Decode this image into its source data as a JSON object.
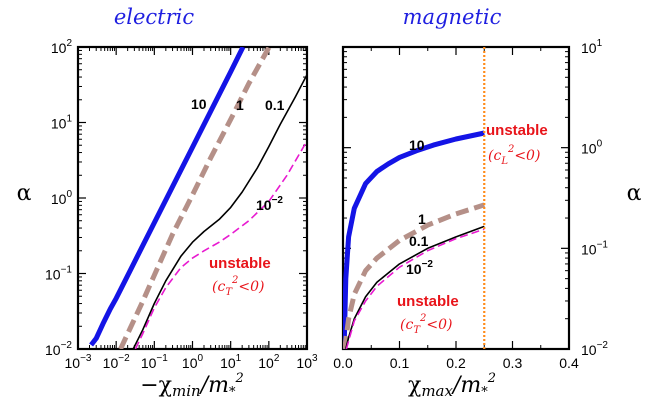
{
  "chart_data": [
    {
      "type": "line",
      "title": "electric",
      "xlabel": "−χmin/m*2",
      "ylabel": "α",
      "xscale": "log",
      "yscale": "log",
      "xlim": [
        0.001,
        1000
      ],
      "ylim": [
        0.01,
        100
      ],
      "x_ticks": [
        "10-3",
        "10-2",
        "10-1",
        "100",
        "101",
        "102",
        "103"
      ],
      "y_ticks": [
        "10-2",
        "10-1",
        "100",
        "101",
        "102"
      ],
      "series": [
        {
          "name": "10",
          "color": "#1414e6",
          "style": "solid thick",
          "points": [
            [
              0.0022,
              0.0113
            ],
            [
              0.003,
              0.0138
            ],
            [
              0.0045,
              0.0215
            ],
            [
              0.007,
              0.034
            ],
            [
              0.01,
              0.047
            ],
            [
              0.02,
              0.094
            ],
            [
              0.05,
              0.235
            ],
            [
              0.1,
              0.47
            ],
            [
              0.3,
              1.41
            ],
            [
              1,
              4.7
            ],
            [
              3,
              14.1
            ],
            [
              10,
              47
            ],
            [
              21,
              100
            ]
          ]
        },
        {
          "name": "1",
          "color": "#b59088",
          "style": "dashed thick",
          "points": [
            [
              0.013,
              0.01
            ],
            [
              0.02,
              0.016
            ],
            [
              0.05,
              0.043
            ],
            [
              0.1,
              0.095
            ],
            [
              0.3,
              0.33
            ],
            [
              1,
              1.1
            ],
            [
              3,
              3.4
            ],
            [
              10,
              11
            ],
            [
              30,
              33
            ],
            [
              100,
              98
            ],
            [
              110,
              110
            ]
          ]
        },
        {
          "name": "0.1",
          "color": "#000000",
          "style": "solid thin",
          "points": [
            [
              0.028,
              0.01
            ],
            [
              0.05,
              0.018
            ],
            [
              0.1,
              0.04
            ],
            [
              0.2,
              0.08
            ],
            [
              0.5,
              0.17
            ],
            [
              1,
              0.26
            ],
            [
              2,
              0.36
            ],
            [
              5,
              0.52
            ],
            [
              10,
              0.75
            ],
            [
              20,
              1.2
            ],
            [
              50,
              2.5
            ],
            [
              100,
              4.8
            ],
            [
              200,
              9.5
            ],
            [
              500,
              22
            ],
            [
              1000,
              43
            ]
          ]
        },
        {
          "name": "10-2",
          "color": "#e81ad0",
          "style": "dashed thin",
          "points": [
            [
              0.032,
              0.01
            ],
            [
              0.05,
              0.016
            ],
            [
              0.1,
              0.035
            ],
            [
              0.2,
              0.065
            ],
            [
              0.5,
              0.12
            ],
            [
              1,
              0.16
            ],
            [
              2,
              0.2
            ],
            [
              5,
              0.26
            ],
            [
              10,
              0.33
            ],
            [
              30,
              0.5
            ],
            [
              100,
              0.9
            ],
            [
              300,
              2
            ],
            [
              1000,
              5.7
            ]
          ]
        }
      ],
      "annotations": [
        {
          "text": "10"
        },
        {
          "text": "1"
        },
        {
          "text": "0.1"
        },
        {
          "text": "10",
          "sup": "−2"
        },
        {
          "text": "unstable"
        },
        {
          "text": "(c",
          "sub": "T",
          "sup": "2",
          "rest": "<0)"
        }
      ]
    },
    {
      "type": "line",
      "title": "magnetic",
      "xlabel": "χmax/m*2",
      "ylabel": "α",
      "xscale": "linear",
      "yscale": "log",
      "xlim": [
        0,
        0.4
      ],
      "ylim": [
        0.01,
        10
      ],
      "x_ticks": [
        "0.0",
        "0.1",
        "0.2",
        "0.3",
        "0.4"
      ],
      "y_ticks": [
        "10-2",
        "10-1",
        "100",
        "101"
      ],
      "vline": {
        "x": 0.25,
        "color": "#ff8c1a",
        "style": "dotted"
      },
      "series": [
        {
          "name": "10",
          "color": "#1414e6",
          "style": "solid thick",
          "points": [
            [
              0.002,
              0.01
            ],
            [
              0.005,
              0.05
            ],
            [
              0.01,
              0.13
            ],
            [
              0.02,
              0.25
            ],
            [
              0.04,
              0.44
            ],
            [
              0.06,
              0.58
            ],
            [
              0.08,
              0.69
            ],
            [
              0.1,
              0.8
            ],
            [
              0.13,
              0.93
            ],
            [
              0.16,
              1.06
            ],
            [
              0.2,
              1.22
            ],
            [
              0.25,
              1.4
            ]
          ]
        },
        {
          "name": "1",
          "color": "#b59088",
          "style": "dashed thick",
          "points": [
            [
              0.003,
              0.01
            ],
            [
              0.01,
              0.02
            ],
            [
              0.02,
              0.035
            ],
            [
              0.04,
              0.06
            ],
            [
              0.06,
              0.08
            ],
            [
              0.1,
              0.12
            ],
            [
              0.15,
              0.17
            ],
            [
              0.2,
              0.22
            ],
            [
              0.25,
              0.27
            ]
          ]
        },
        {
          "name": "0.1",
          "color": "#000000",
          "style": "solid thin",
          "points": [
            [
              0.005,
              0.01
            ],
            [
              0.01,
              0.013
            ],
            [
              0.02,
              0.02
            ],
            [
              0.04,
              0.033
            ],
            [
              0.06,
              0.046
            ],
            [
              0.1,
              0.07
            ],
            [
              0.15,
              0.1
            ],
            [
              0.2,
              0.13
            ],
            [
              0.25,
              0.165
            ]
          ]
        },
        {
          "name": "10-2",
          "color": "#e81ad0",
          "style": "dashed thin",
          "points": [
            [
              0.006,
              0.01
            ],
            [
              0.01,
              0.012
            ],
            [
              0.02,
              0.019
            ],
            [
              0.04,
              0.03
            ],
            [
              0.06,
              0.042
            ],
            [
              0.1,
              0.065
            ],
            [
              0.15,
              0.095
            ],
            [
              0.2,
              0.125
            ],
            [
              0.25,
              0.155
            ]
          ]
        }
      ],
      "annotations": [
        {
          "text": "10"
        },
        {
          "text": "1"
        },
        {
          "text": "0.1"
        },
        {
          "text": "10",
          "sup": "−2"
        },
        {
          "text": "unstable"
        },
        {
          "text": "(c",
          "sub": "L",
          "sup": "2",
          "rest": "<0)"
        },
        {
          "text": "unstable"
        },
        {
          "text": "(c",
          "sub": "T",
          "sup": "2",
          "rest": "<0)"
        }
      ]
    }
  ]
}
